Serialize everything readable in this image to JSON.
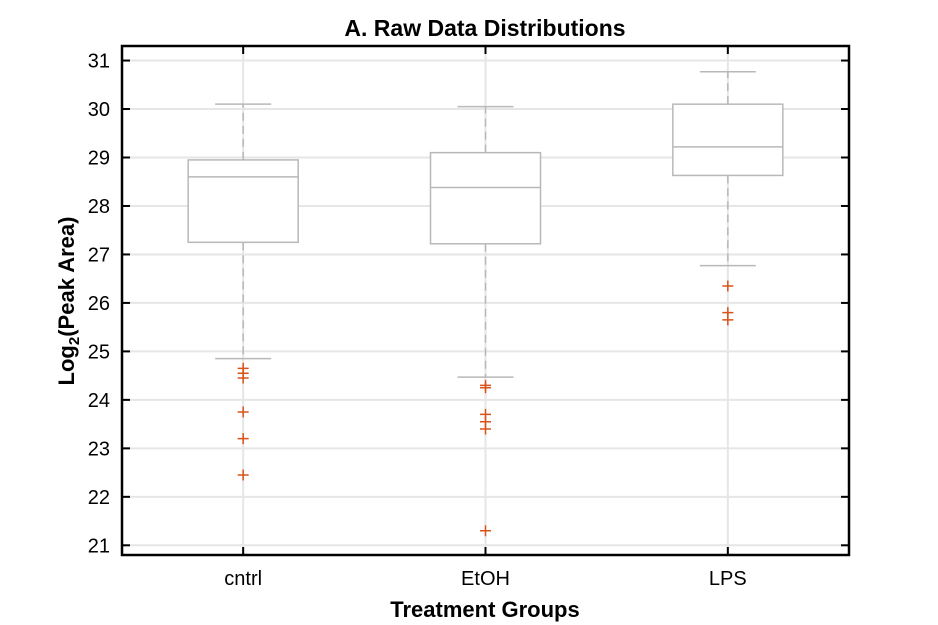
{
  "chart_data": {
    "type": "box",
    "title": "A. Raw Data Distributions",
    "xlabel": "Treatment Groups",
    "ylabel_main": "Log",
    "ylabel_sub": "2",
    "ylabel_rest": "(Peak Area)",
    "ylim": [
      20.8,
      31.3
    ],
    "yticks": [
      21,
      22,
      23,
      24,
      25,
      26,
      27,
      28,
      29,
      30,
      31
    ],
    "grid": true,
    "categories": [
      "cntrl",
      "EtOH",
      "LPS"
    ],
    "boxes": [
      {
        "name": "cntrl",
        "whisker_low": 24.85,
        "q1": 27.25,
        "median": 28.6,
        "q3": 28.95,
        "whisker_high": 30.1,
        "outliers": [
          24.65,
          24.55,
          24.45,
          23.75,
          23.2,
          22.45
        ]
      },
      {
        "name": "EtOH",
        "whisker_low": 24.47,
        "q1": 27.22,
        "median": 28.38,
        "q3": 29.1,
        "whisker_high": 30.05,
        "outliers": [
          24.3,
          24.25,
          23.7,
          23.55,
          23.4,
          21.3
        ]
      },
      {
        "name": "LPS",
        "whisker_low": 26.77,
        "q1": 28.63,
        "median": 29.22,
        "q3": 30.1,
        "whisker_high": 30.77,
        "outliers": [
          26.35,
          25.8,
          25.65
        ]
      }
    ],
    "colors": {
      "box": "#b8b8b8",
      "whisker": "#b8b8b8",
      "outlier": "#d95319",
      "grid": "#e6e6e6",
      "axis": "#000000"
    }
  }
}
